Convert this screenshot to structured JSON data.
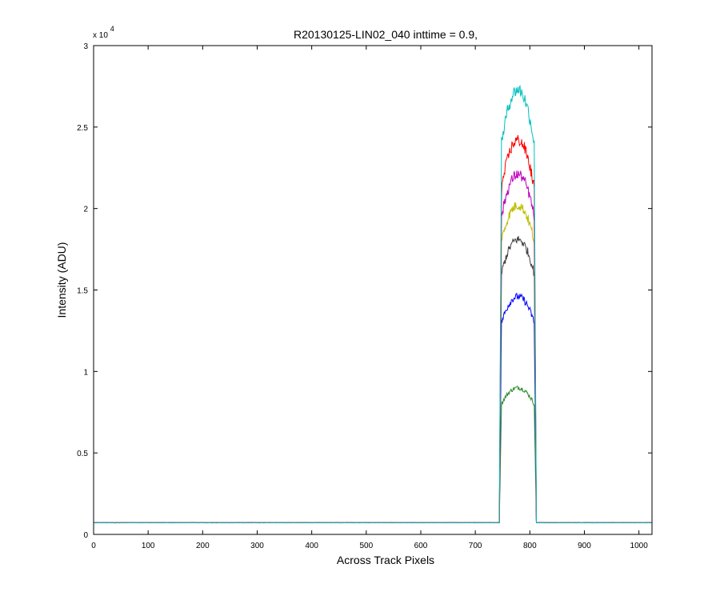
{
  "chart_data": {
    "type": "line",
    "title": "R20130125-LIN02_040 inttime = 0.9,",
    "xlabel": "Across Track Pixels",
    "ylabel": "Intensity (ADU)",
    "xlim": [
      0,
      1024
    ],
    "ylim": [
      0,
      30000
    ],
    "y_exponent_label": "x 10",
    "y_exponent_power": "4",
    "xticks": [
      0,
      100,
      200,
      300,
      400,
      500,
      600,
      700,
      800,
      900,
      1000
    ],
    "xtick_labels": [
      "0",
      "100",
      "200",
      "300",
      "400",
      "500",
      "600",
      "700",
      "800",
      "900",
      "1000"
    ],
    "yticks": [
      0,
      5000,
      10000,
      15000,
      20000,
      25000,
      30000
    ],
    "ytick_labels": [
      "0",
      "0.5",
      "1",
      "1.5",
      "2",
      "2.5",
      "3"
    ],
    "grid": false,
    "legend": "none",
    "baseline": 720,
    "plateau_start": 748,
    "plateau_end": 808,
    "series": [
      {
        "color": "#2f8f2f",
        "peak": 9000,
        "edge": 8000
      },
      {
        "color": "#0000ff",
        "peak": 14600,
        "edge": 13000
      },
      {
        "color": "#404040",
        "peak": 18100,
        "edge": 16000
      },
      {
        "color": "#bfbf00",
        "peak": 20200,
        "edge": 18000
      },
      {
        "color": "#bf00bf",
        "peak": 22100,
        "edge": 19500
      },
      {
        "color": "#ff0000",
        "peak": 24200,
        "edge": 21200
      },
      {
        "color": "#00bfbf",
        "peak": 27300,
        "edge": 24000
      }
    ]
  }
}
